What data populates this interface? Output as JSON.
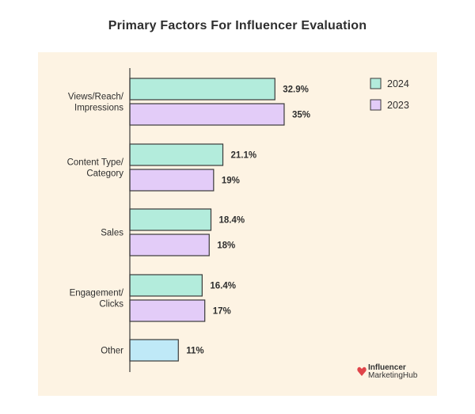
{
  "chart_data": {
    "type": "bar",
    "orientation": "horizontal",
    "title": "Primary Factors For Influencer Evaluation",
    "categories": [
      [
        "Views/Reach/",
        "Impressions"
      ],
      [
        "Content Type/",
        "Category"
      ],
      [
        "Sales"
      ],
      [
        "Engagement/",
        "Clicks"
      ],
      [
        "Other"
      ]
    ],
    "series": [
      {
        "name": "2024",
        "color": "#b3ecdc",
        "values": [
          32.9,
          21.1,
          18.4,
          16.4,
          null
        ],
        "labels": [
          "32.9%",
          "21.1%",
          "18.4%",
          "16.4%",
          null
        ]
      },
      {
        "name": "2023",
        "color": "#e3ccf8",
        "values": [
          35,
          19,
          18,
          17,
          null
        ],
        "labels": [
          "35%",
          "19%",
          "18%",
          "17%",
          null
        ]
      }
    ],
    "unlabeled_bars": [
      {
        "category_index": 4,
        "value": 11,
        "label": "11%",
        "color": "#bfe9f7"
      }
    ],
    "xlim": [
      0,
      50
    ],
    "grid": false,
    "legend_position": "top-right"
  },
  "colors": {
    "panel_background": "#fdf3e3",
    "bar_outline": "#3a3a3a",
    "axis": "#3a3a3a"
  },
  "brand": {
    "line1": "Influencer",
    "line2": "MarketingHub",
    "icon": "heart-logo-icon"
  }
}
